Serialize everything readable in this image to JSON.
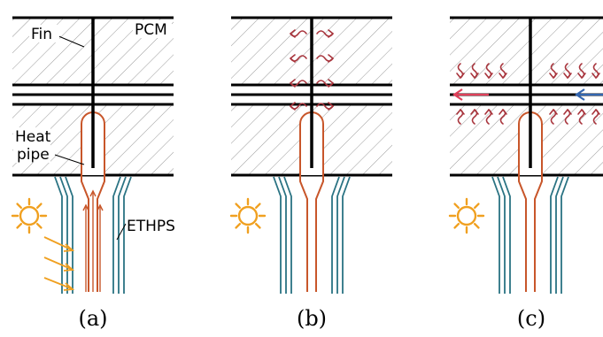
{
  "labels": {
    "pcm": "PCM",
    "fin": "Fin",
    "heat_pipe_line1": "Heat",
    "heat_pipe_line2": "pipe",
    "ethps": "ETHPS"
  },
  "captions": [
    "(a)",
    "(b)",
    "(c)"
  ],
  "colors": {
    "heat_pipe": "#c8562a",
    "ethps": "#2a7383",
    "sun": "#f0a020",
    "heat_flux": "#a8343c",
    "flow_red": "#e0405a",
    "flow_blue": "#3366b0",
    "hatch": "#9a9a9a",
    "fin": "#000000"
  },
  "panels": [
    {
      "id": "a",
      "shows": [
        "sun-icon",
        "solar-rays",
        "heat-pipe-vapor-arrows"
      ]
    },
    {
      "id": "b",
      "shows": [
        "sun-icon",
        "heat-flux-arrows-pcm-melting"
      ]
    },
    {
      "id": "c",
      "shows": [
        "sun-icon",
        "heat-flux-arrows-to-channel",
        "flow-arrows-channel"
      ]
    }
  ]
}
